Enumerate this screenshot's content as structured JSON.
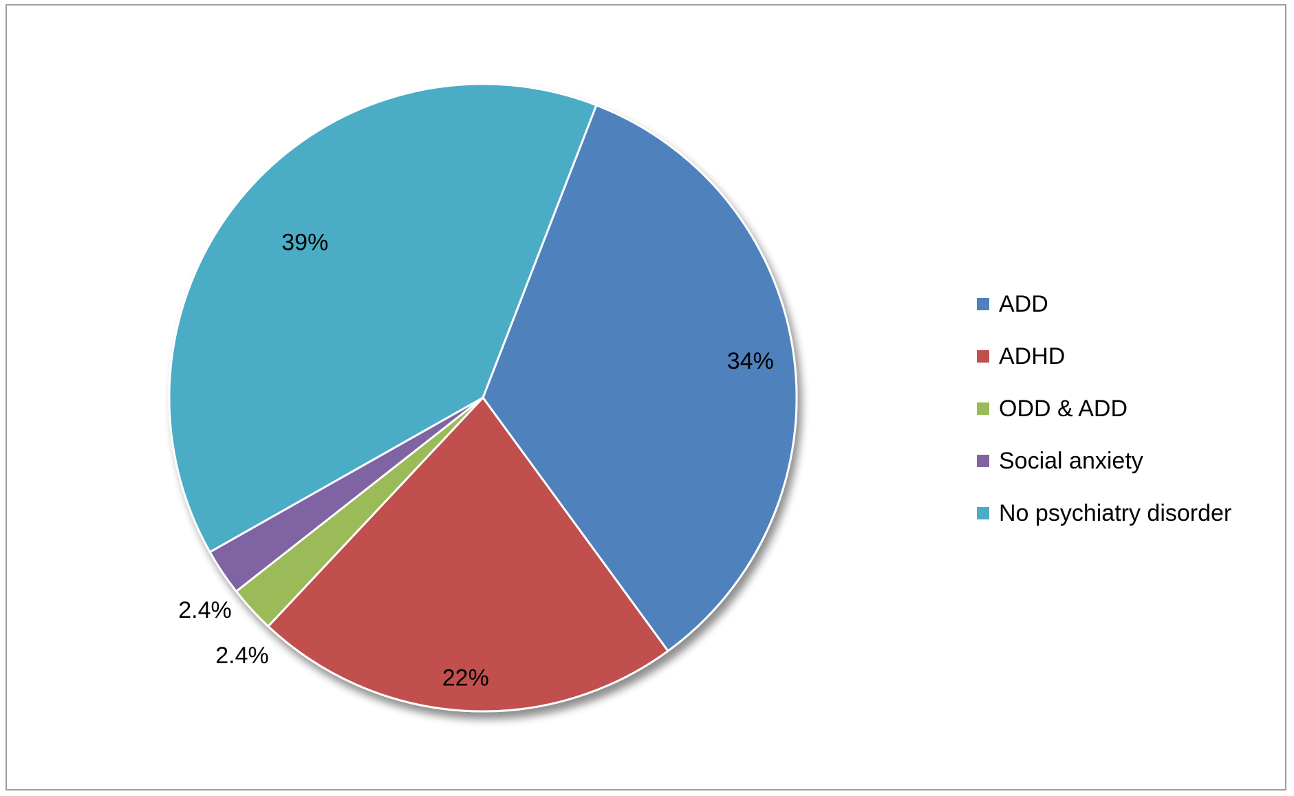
{
  "chart_data": {
    "type": "pie",
    "title": "",
    "series": [
      {
        "values": [
          34,
          22,
          2.4,
          2.4,
          39
        ],
        "labels": [
          "34%",
          "22%",
          "2.4%",
          "2.4%",
          "39%"
        ]
      }
    ],
    "categories": [
      "ADD",
      "ADHD",
      "ODD & ADD",
      "Social anxiety",
      "No psychiatry disorder"
    ],
    "colors": [
      "#4F81BD",
      "#C0504D",
      "#9BBB59",
      "#8064A2",
      "#4BACC6"
    ],
    "legend_position": "right",
    "start_angle_deg": 21.2,
    "direction": "clockwise"
  }
}
